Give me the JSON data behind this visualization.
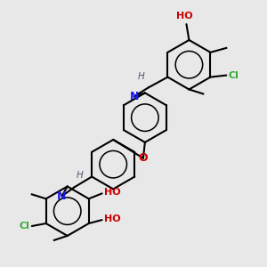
{
  "bg_color": "#e8e8e8",
  "bond_color": "#000000",
  "N_color": "#1a1aee",
  "O_color": "#cc0000",
  "Cl_color": "#33aa33",
  "H_color": "#555577",
  "lw": 1.5,
  "figsize": [
    3.0,
    3.0
  ],
  "dpi": 100,
  "xlim": [
    0,
    300
  ],
  "ylim": [
    0,
    300
  ]
}
